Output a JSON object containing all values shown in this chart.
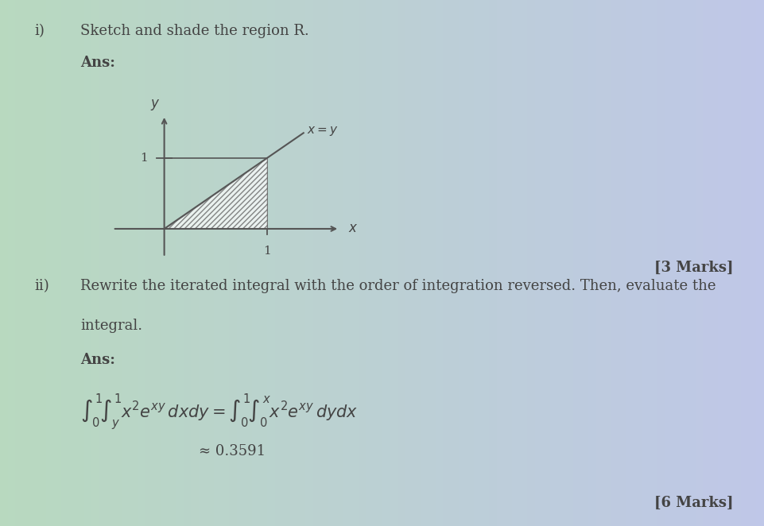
{
  "fig_width": 9.61,
  "fig_height": 6.62,
  "title_i": "i)",
  "title_ii": "ii)",
  "label_sketch": "Sketch and shade the region R.",
  "label_ans": "Ans:",
  "label_ans2": "Ans:",
  "marks_3": "[3 Marks]",
  "marks_6": "[6 Marks]",
  "text_ii": "Rewrite the iterated integral with the order of integration reversed. Then, evaluate the",
  "text_ii2": "integral.",
  "text_approx": "≈ 0.3591",
  "integral_lhs": "$\\int_0^1\\!\\int_y^1 x^2e^{xy}\\,dxdy$",
  "integral_rhs": "$= \\int_0^1\\!\\int_0^x x^2e^{xy}\\,dydx$",
  "bg_color_left": "#b8d8c0",
  "bg_color_right": "#c0c8e8",
  "text_color": "#444444",
  "axis_color": "#555555",
  "hatch_color": "#555555",
  "font_size_main": 13,
  "font_size_marks": 13,
  "ox": 0.215,
  "oy": 0.565,
  "scale": 0.135
}
